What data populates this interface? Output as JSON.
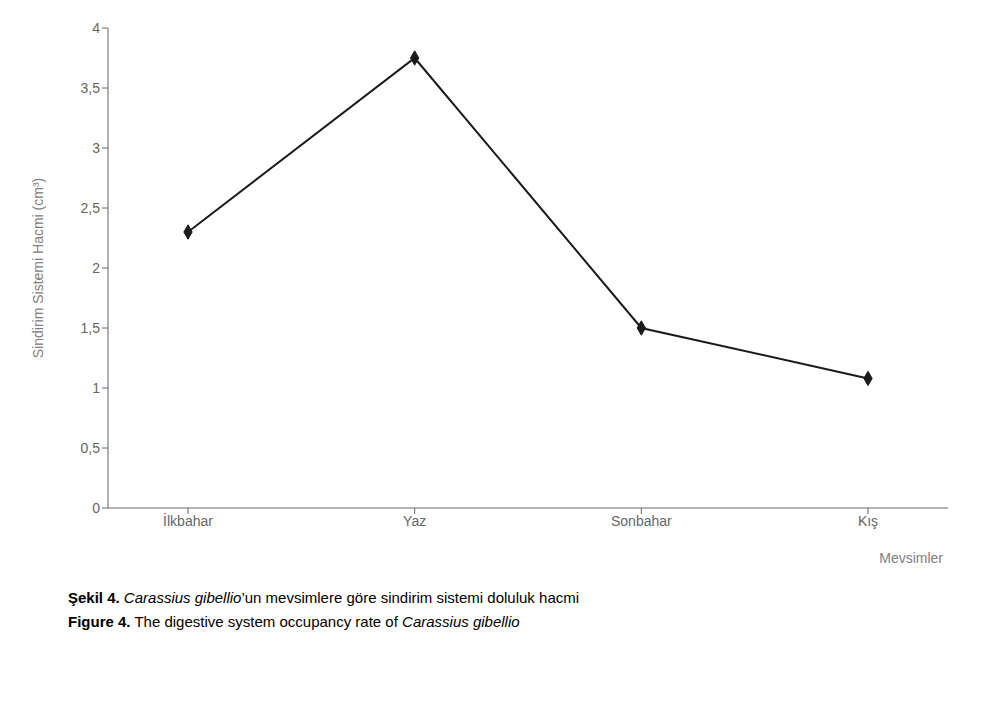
{
  "chart_data": {
    "type": "line",
    "categories": [
      "İlkbahar",
      "Yaz",
      "Sonbahar",
      "Kış"
    ],
    "values": [
      2.3,
      3.75,
      1.5,
      1.08
    ],
    "xlabel": "Mevsimler",
    "ylabel": "Sindirim Sistemi Hacmi (cm³)",
    "ylim": [
      0,
      4.0
    ],
    "yticks": [
      0,
      {
        "value": 0.5,
        "label": "0,5"
      },
      1,
      {
        "value": 1.5,
        "label": "1,5"
      },
      2,
      {
        "value": 2.5,
        "label": "2,5"
      },
      3,
      {
        "value": 3.5,
        "label": "3,5"
      },
      4
    ],
    "color": "#1a1a1a",
    "marker": "diamond",
    "grid": false,
    "annotations": [
      [
        "Şekil 4.",
        " Carassius gibellio",
        "’un mevsimlere göre sindirim sistemi doluluk hacmi"
      ],
      [
        "Figure 4.",
        " The digestive system occupancy rate of ",
        "Carassius gibellio"
      ]
    ]
  }
}
